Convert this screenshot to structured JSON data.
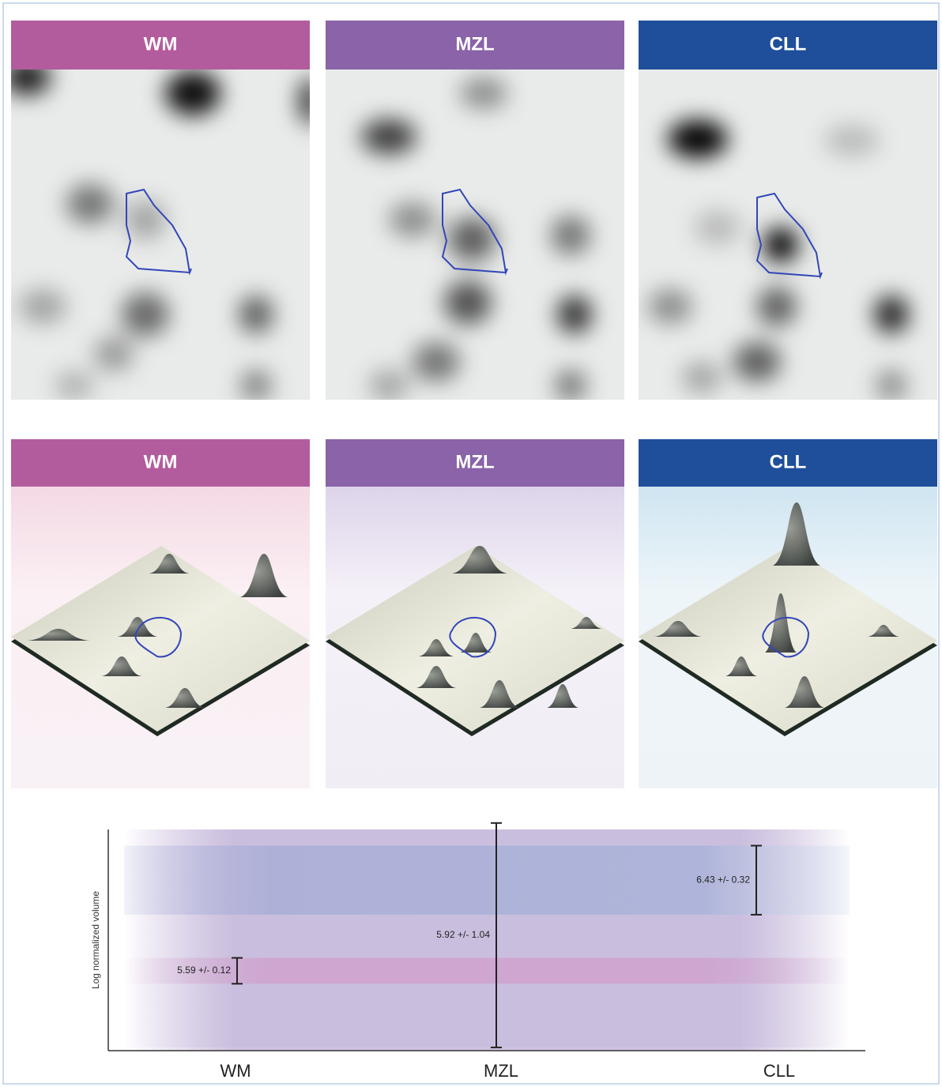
{
  "gel_panels": [
    "WM",
    "MZL",
    "CLL"
  ],
  "surface_panels": [
    "WM",
    "MZL",
    "CLL"
  ],
  "chart_data": {
    "type": "errorbar",
    "y_label": "Log normalized volume",
    "categories": [
      "WM",
      "MZL",
      "CLL"
    ],
    "values": [
      5.59,
      5.92,
      6.43
    ],
    "errors": [
      0.12,
      1.04,
      0.32
    ],
    "value_labels": [
      "5.59 +/- 0.12",
      "5.92 +/- 1.04",
      "6.43 +/- 0.32"
    ],
    "ylim": [
      4.85,
      6.9
    ]
  }
}
